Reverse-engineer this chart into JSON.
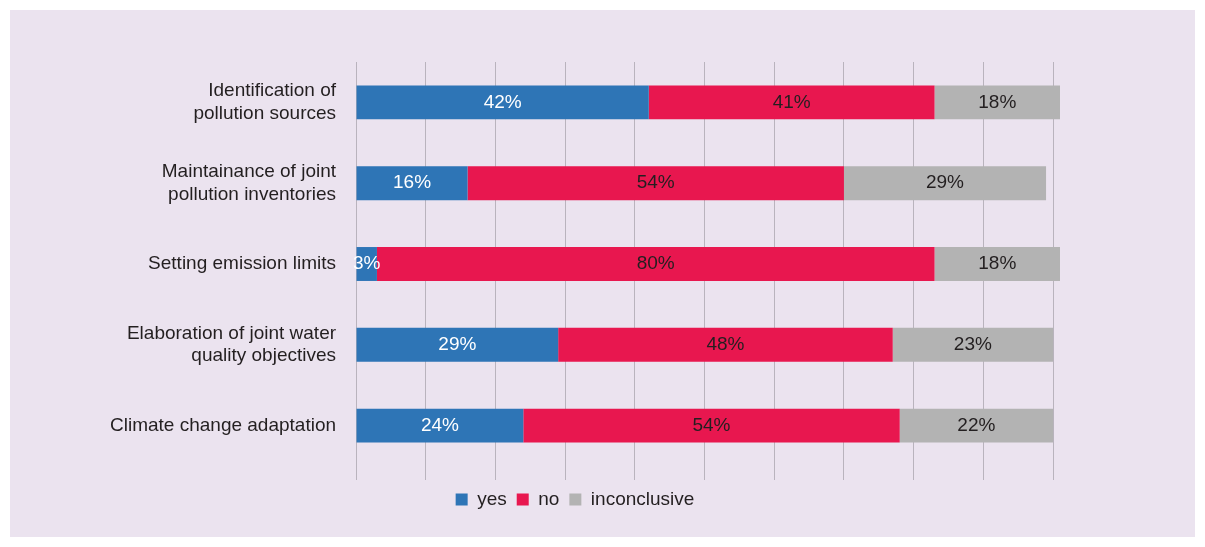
{
  "chart_data": {
    "type": "bar",
    "orientation": "horizontal",
    "stacked": true,
    "categories": [
      "Identification of pollution sources",
      "Maintainance of joint pollution inventories",
      "Setting emission limits",
      "Elaboration of joint water quality objectives",
      "Climate change adaptation"
    ],
    "series": [
      {
        "name": "yes",
        "color": "#2e75b6",
        "values": [
          42,
          16,
          3,
          29,
          24
        ],
        "value_labels": [
          "42%",
          "16%",
          "3%",
          "29%",
          "24%"
        ]
      },
      {
        "name": "no",
        "color": "#e8174f",
        "values": [
          41,
          54,
          80,
          48,
          54
        ],
        "value_labels": [
          "41%",
          "54%",
          "80%",
          "48%",
          "54%"
        ]
      },
      {
        "name": "inconclusive",
        "color": "#b3b3b3",
        "values": [
          18,
          29,
          18,
          23,
          22
        ],
        "value_labels": [
          "18%",
          "29%",
          "18%",
          "23%",
          "22%"
        ]
      }
    ],
    "xlim": [
      0,
      101
    ],
    "xticks": [
      {
        "value": 0,
        "label": null
      },
      {
        "value": 10,
        "label": null
      },
      {
        "value": 20,
        "label": null
      },
      {
        "value": 30,
        "label": null
      },
      {
        "value": 40,
        "label": null
      },
      {
        "value": 50,
        "label": null
      },
      {
        "value": 60,
        "label": null
      },
      {
        "value": 70,
        "label": null
      },
      {
        "value": 80,
        "label": null
      },
      {
        "value": 90,
        "label": null
      },
      {
        "value": 100,
        "label": null
      }
    ],
    "grid": "x",
    "legend": "bottom",
    "tick_labels": "y"
  }
}
